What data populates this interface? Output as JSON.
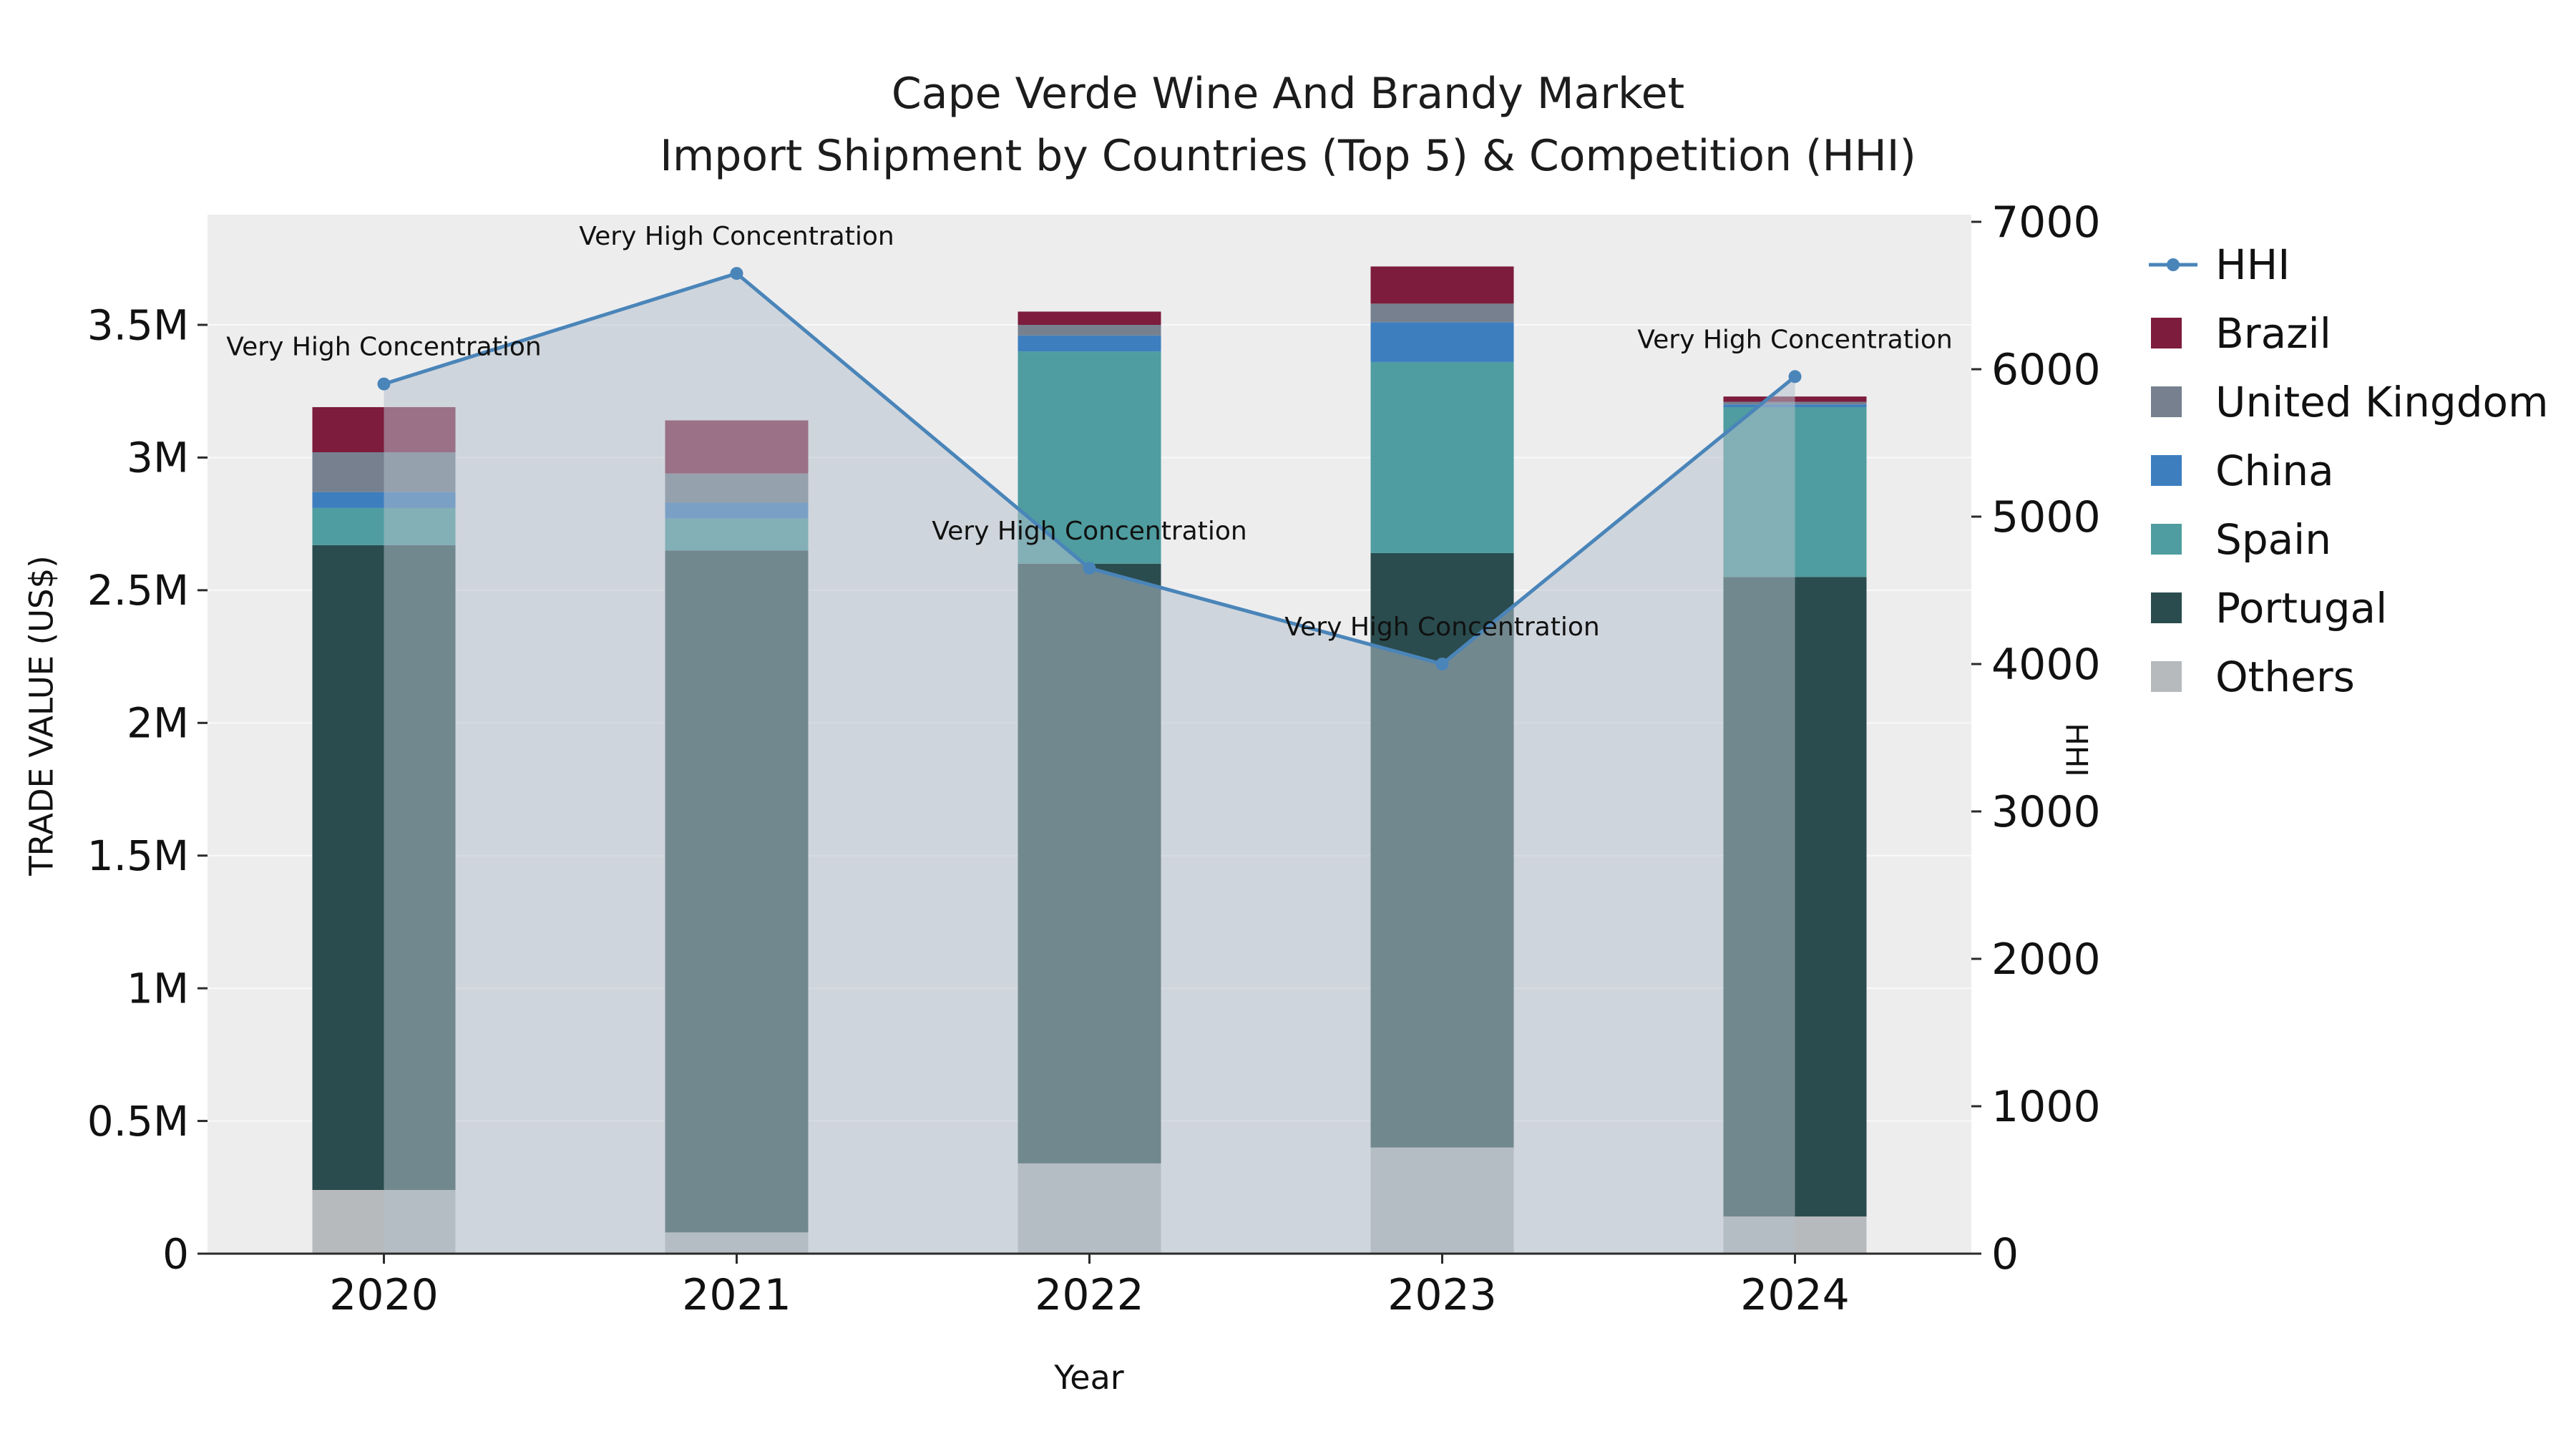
{
  "title": {
    "line1": "Cape Verde Wine And Brandy Market",
    "line2": "Import Shipment by Countries (Top 5) & Competition (HHI)"
  },
  "axes": {
    "y_left_title": "TRADE VALUE (US$)",
    "y_right_title": "HHI",
    "x_title": "Year",
    "y_left_ticks": [
      {
        "value": 0,
        "label": "0"
      },
      {
        "value": 500000,
        "label": "0.5M"
      },
      {
        "value": 1000000,
        "label": "1M"
      },
      {
        "value": 1500000,
        "label": "1.5M"
      },
      {
        "value": 2000000,
        "label": "2M"
      },
      {
        "value": 2500000,
        "label": "2.5M"
      },
      {
        "value": 3000000,
        "label": "3M"
      },
      {
        "value": 3500000,
        "label": "3.5M"
      }
    ],
    "y_right_ticks": [
      {
        "value": 0,
        "label": "0"
      },
      {
        "value": 1000,
        "label": "1000"
      },
      {
        "value": 2000,
        "label": "2000"
      },
      {
        "value": 3000,
        "label": "3000"
      },
      {
        "value": 4000,
        "label": "4000"
      },
      {
        "value": 5000,
        "label": "5000"
      },
      {
        "value": 6000,
        "label": "6000"
      },
      {
        "value": 7000,
        "label": "7000"
      }
    ]
  },
  "chart_data": {
    "type": "bar",
    "subtype": "stacked-bar-with-line",
    "categories": [
      "2020",
      "2021",
      "2022",
      "2023",
      "2024"
    ],
    "series": [
      {
        "name": "Others",
        "color": "#b7babd",
        "values": [
          240000,
          80000,
          340000,
          400000,
          140000
        ]
      },
      {
        "name": "Portugal",
        "color": "#2a4c4e",
        "values": [
          2430000,
          2570000,
          2260000,
          2240000,
          2410000
        ]
      },
      {
        "name": "Spain",
        "color": "#4f9da0",
        "values": [
          140000,
          120000,
          800000,
          720000,
          640000
        ]
      },
      {
        "name": "China",
        "color": "#3d7ebf",
        "values": [
          60000,
          60000,
          60000,
          150000,
          10000
        ]
      },
      {
        "name": "United Kingdom",
        "color": "#76808f",
        "values": [
          150000,
          110000,
          40000,
          70000,
          10000
        ]
      },
      {
        "name": "Brazil",
        "color": "#7d1c3c",
        "values": [
          170000,
          200000,
          50000,
          140000,
          20000
        ]
      }
    ],
    "line_series": {
      "name": "HHI",
      "color": "#4a85b9",
      "axis": "right",
      "values": [
        5900,
        6650,
        4650,
        4000,
        5950
      ]
    },
    "annotations": [
      {
        "category": "2020",
        "text": "Very High Concentration"
      },
      {
        "category": "2021",
        "text": "Very High Concentration"
      },
      {
        "category": "2022",
        "text": "Very High Concentration"
      },
      {
        "category": "2023",
        "text": "Very High Concentration"
      },
      {
        "category": "2024",
        "text": "Very High Concentration"
      }
    ],
    "ylim_left": [
      0,
      3500000
    ],
    "ylim_right": [
      0,
      7000
    ],
    "xlabel": "Year",
    "ylabel_left": "TRADE VALUE (US$)",
    "ylabel_right": "HHI",
    "plot_background": "#ededee",
    "grid_color": "#f8f9fa",
    "area_fill": {
      "color": "#b5bfcc",
      "opacity": 0.52
    },
    "legend_position": "right"
  },
  "legend": {
    "items": [
      {
        "label": "HHI",
        "swatch": "line",
        "color": "#4a85b9"
      },
      {
        "label": "Brazil",
        "swatch": "square",
        "color": "#7d1c3c"
      },
      {
        "label": "United Kingdom",
        "swatch": "square",
        "color": "#76808f"
      },
      {
        "label": "China",
        "swatch": "square",
        "color": "#3d7ebf"
      },
      {
        "label": "Spain",
        "swatch": "square",
        "color": "#4f9da0"
      },
      {
        "label": "Portugal",
        "swatch": "square",
        "color": "#2a4c4e"
      },
      {
        "label": "Others",
        "swatch": "square",
        "color": "#b7babd"
      }
    ]
  }
}
